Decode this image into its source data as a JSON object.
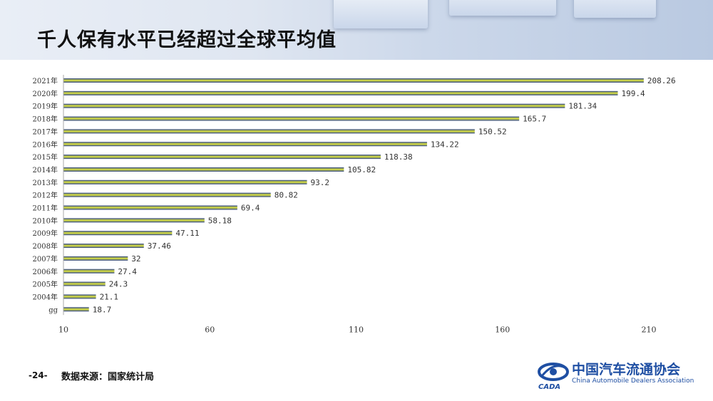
{
  "slide": {
    "title": "千人保有水平已经超过全球平均值",
    "page_number": "-24-",
    "source": "数据来源：国家统计局"
  },
  "logo": {
    "name_cn": "中国汽车流通协会",
    "name_en": "China Automobile Dealers Association",
    "mark_text": "CADA"
  },
  "colors": {
    "bar_edge": "#2a3f8a",
    "bar_center": "#e3ea3c",
    "axis": "#aaaaaa",
    "label": "#333333"
  },
  "chart_data": {
    "type": "bar",
    "orientation": "horizontal",
    "categories": [
      "2021年",
      "2020年",
      "2019年",
      "2018年",
      "2017年",
      "2016年",
      "2015年",
      "2014年",
      "2013年",
      "2012年",
      "2011年",
      "2010年",
      "2009年",
      "2008年",
      "2007年",
      "2006年",
      "2005年",
      "2004年",
      "gg"
    ],
    "values": [
      208.26,
      199.4,
      181.34,
      165.7,
      150.52,
      134.22,
      118.38,
      105.82,
      93.2,
      80.82,
      69.4,
      58.18,
      47.11,
      37.46,
      32,
      27.4,
      24.3,
      21.1,
      18.7
    ],
    "value_labels": [
      "208.26",
      "199.4",
      "181.34",
      "165.7",
      "150.52",
      "134.22",
      "118.38",
      "105.82",
      "93.2",
      "80.82",
      "69.4",
      "58.18",
      "47.11",
      "37.46",
      "32",
      "27.4",
      "24.3",
      "21.1",
      "18.7"
    ],
    "xlim": [
      10,
      210
    ],
    "xticks": [
      10,
      60,
      110,
      160,
      210
    ],
    "title": "",
    "xlabel": "",
    "ylabel": "",
    "grid": false,
    "legend": "none"
  }
}
